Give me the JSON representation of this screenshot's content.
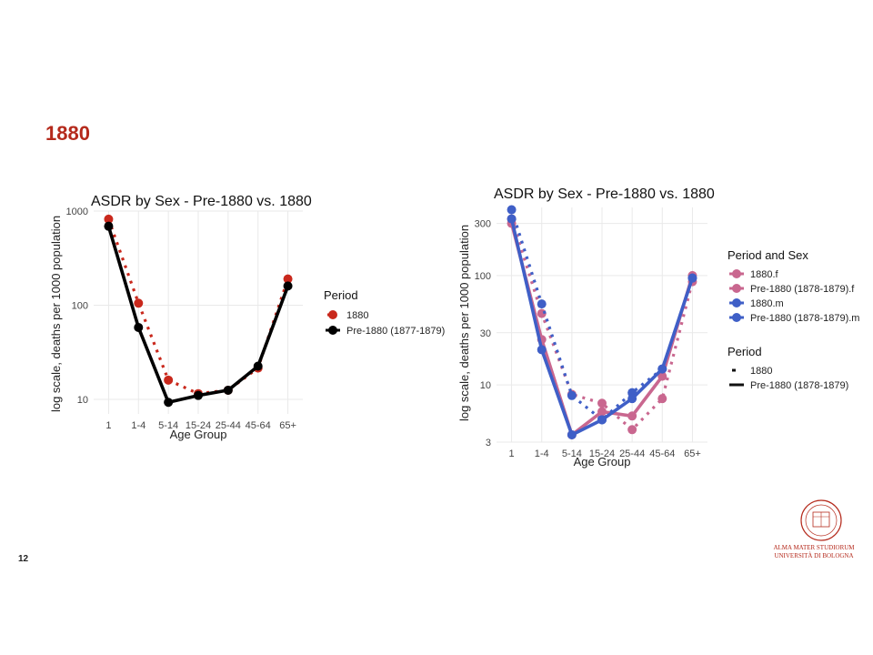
{
  "slide": {
    "title": "1880",
    "number": "12",
    "logo_lines": [
      "ALMA MATER STUDIORUM",
      "UNIVERSITÀ DI BOLOGNA"
    ],
    "accent_color": "#b52a1c"
  },
  "chart_data": [
    {
      "type": "line",
      "title": "ASDR by Sex - Pre-1880 vs. 1880",
      "xlabel": "Age Group",
      "ylabel": "log scale, deaths per 1000 population",
      "y_scale": "log",
      "ylim": [
        7,
        1000
      ],
      "yticks": [
        10,
        100,
        1000
      ],
      "categories": [
        "1",
        "1-4",
        "5-14",
        "15-24",
        "25-44",
        "45-64",
        "65+"
      ],
      "legend_title": "Period",
      "legend_position": "right",
      "grid": true,
      "series": [
        {
          "name": "1880",
          "color": "#c9281c",
          "line": "dotted",
          "values": [
            820,
            105,
            16,
            11.5,
            12.5,
            21.5,
            190
          ]
        },
        {
          "name": "Pre-1880 (1877-1879)",
          "color": "#000000",
          "line": "solid",
          "values": [
            690,
            58,
            9.3,
            11,
            12.5,
            22.5,
            160
          ]
        }
      ]
    },
    {
      "type": "line",
      "title": "ASDR by Sex - Pre-1880 vs. 1880",
      "xlabel": "Age Group",
      "ylabel": "log scale, deaths per 1000 population",
      "y_scale": "log",
      "ylim": [
        3,
        420
      ],
      "yticks": [
        3,
        10,
        30,
        100,
        300
      ],
      "categories": [
        "1",
        "1-4",
        "5-14",
        "15-24",
        "25-44",
        "45-64",
        "65+"
      ],
      "legend_position": "right",
      "grid": true,
      "legend_groups": [
        {
          "title": "Period and Sex",
          "items": [
            {
              "label": "1880.f",
              "color": "#c9678f"
            },
            {
              "label": "Pre-1880 (1878-1879).f",
              "color": "#c9678f"
            },
            {
              "label": "1880.m",
              "color": "#3f5fc7"
            },
            {
              "label": "Pre-1880 (1878-1879).m",
              "color": "#3f5fc7"
            }
          ]
        },
        {
          "title": "Period",
          "items": [
            {
              "label": "1880",
              "line": "dotted"
            },
            {
              "label": "Pre-1880 (1878-1879)",
              "line": "solid"
            }
          ]
        }
      ],
      "series": [
        {
          "name": "1880.f",
          "color": "#c9678f",
          "line": "dotted",
          "values": [
            330,
            45,
            8.2,
            6.8,
            3.9,
            7.5,
            88
          ]
        },
        {
          "name": "Pre-1880 (1878-1879).f",
          "color": "#c9678f",
          "line": "solid",
          "values": [
            300,
            26,
            3.5,
            5.7,
            5.2,
            12,
            100
          ]
        },
        {
          "name": "1880.m",
          "color": "#3f5fc7",
          "line": "dotted",
          "values": [
            400,
            55,
            8,
            4.8,
            8.5,
            14,
            95
          ]
        },
        {
          "name": "Pre-1880 (1878-1879).m",
          "color": "#3f5fc7",
          "line": "solid",
          "values": [
            330,
            21,
            3.5,
            4.8,
            7.5,
            14,
            95
          ]
        }
      ]
    }
  ]
}
